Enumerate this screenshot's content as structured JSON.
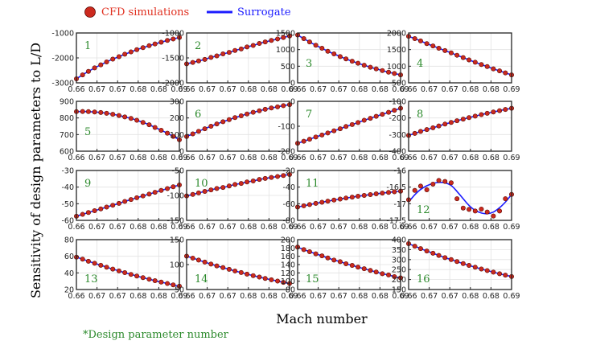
{
  "colors": {
    "cfd_face": "#cc2a1e",
    "cfd_edge": "#5a0a06",
    "surrogate": "#1c1cff",
    "panel_number": "#2c8a2c",
    "legend_cfd_text": "#e03020",
    "legend_surrogate_text": "#1c1cff",
    "footnote_text": "#2c8a2c",
    "grid": "#e2e2e2"
  },
  "legend": {
    "cfd_label": "CFD simulations",
    "surrogate_label": "Surrogate",
    "placement": "top-left"
  },
  "xlabel": "Mach number",
  "ylabel": "Sensitivity of design parameters to L/D",
  "footnote": "*Design parameter number",
  "chart_data": {
    "type": "scatter",
    "layout": {
      "rows": 4,
      "cols": 4
    },
    "grid": true,
    "x": [
      0.66,
      0.6618,
      0.6635,
      0.6653,
      0.6671,
      0.6688,
      0.6706,
      0.6724,
      0.6741,
      0.6759,
      0.6776,
      0.6794,
      0.6812,
      0.6829,
      0.6847,
      0.6865,
      0.6882,
      0.69
    ],
    "x_ticks": [
      "0.66",
      "0.67",
      "0.67",
      "0.68",
      "0.68",
      "0.69"
    ],
    "x_tick_values": [
      0.66,
      0.666,
      0.672,
      0.678,
      0.684,
      0.69
    ],
    "xlim": [
      0.66,
      0.69
    ],
    "panels": [
      {
        "number": "1",
        "ylim": [
          -3000,
          -1000
        ],
        "yticks": [
          "-1000",
          "-2000",
          "-3000"
        ],
        "ytick_values": [
          -1000,
          -2000,
          -3000
        ],
        "label_pos": "top-left",
        "cfd": [
          -2840,
          -2680,
          -2540,
          -2400,
          -2280,
          -2160,
          -2050,
          -1950,
          -1850,
          -1760,
          -1670,
          -1590,
          -1510,
          -1440,
          -1370,
          -1300,
          -1240,
          -1180
        ],
        "surrogate": [
          -2840,
          -2680,
          -2540,
          -2400,
          -2280,
          -2160,
          -2050,
          -1950,
          -1850,
          -1760,
          -1670,
          -1590,
          -1510,
          -1440,
          -1370,
          -1300,
          -1240,
          -1180
        ]
      },
      {
        "number": "2",
        "ylim": [
          -2000,
          -1000
        ],
        "yticks": [
          "-1000",
          "-1500",
          "-2000"
        ],
        "ytick_values": [
          -1000,
          -1500,
          -2000
        ],
        "label_pos": "top-left",
        "cfd": [
          -1620,
          -1590,
          -1560,
          -1530,
          -1490,
          -1460,
          -1420,
          -1390,
          -1350,
          -1320,
          -1280,
          -1250,
          -1210,
          -1180,
          -1150,
          -1120,
          -1090,
          -1060
        ],
        "surrogate": [
          -1620,
          -1590,
          -1560,
          -1530,
          -1490,
          -1460,
          -1420,
          -1390,
          -1350,
          -1320,
          -1280,
          -1250,
          -1210,
          -1180,
          -1150,
          -1120,
          -1090,
          -1060
        ]
      },
      {
        "number": "3",
        "ylim": [
          0,
          1500
        ],
        "yticks": [
          "1500",
          "1000",
          "500",
          "0"
        ],
        "ytick_values": [
          1500,
          1000,
          500,
          0
        ],
        "label_pos": "middle-left",
        "cfd": [
          1440,
          1330,
          1230,
          1130,
          1040,
          950,
          870,
          790,
          720,
          650,
          590,
          530,
          470,
          420,
          370,
          320,
          280,
          240
        ],
        "surrogate": [
          1440,
          1330,
          1230,
          1130,
          1040,
          950,
          870,
          790,
          720,
          650,
          590,
          530,
          470,
          420,
          370,
          320,
          280,
          240
        ]
      },
      {
        "number": "4",
        "ylim": [
          500,
          2000
        ],
        "yticks": [
          "2000",
          "1500",
          "1000",
          "500"
        ],
        "ytick_values": [
          2000,
          1500,
          1000,
          500
        ],
        "label_pos": "middle-left",
        "cfd": [
          1900,
          1830,
          1760,
          1680,
          1610,
          1540,
          1470,
          1400,
          1330,
          1260,
          1190,
          1120,
          1050,
          990,
          920,
          860,
          800,
          740
        ],
        "surrogate": [
          1900,
          1830,
          1760,
          1680,
          1610,
          1540,
          1470,
          1400,
          1330,
          1260,
          1190,
          1120,
          1050,
          990,
          920,
          860,
          800,
          740
        ]
      },
      {
        "number": "5",
        "ylim": [
          600,
          900
        ],
        "yticks": [
          "900",
          "800",
          "700",
          "600"
        ],
        "ytick_values": [
          900,
          800,
          700,
          600
        ],
        "label_pos": "middle-left",
        "cfd": [
          838,
          839,
          838,
          836,
          833,
          828,
          822,
          815,
          806,
          797,
          786,
          773,
          759,
          743,
          726,
          708,
          689,
          669
        ],
        "surrogate": [
          838,
          839,
          838,
          836,
          833,
          828,
          822,
          815,
          806,
          797,
          786,
          773,
          759,
          743,
          726,
          708,
          689,
          669
        ]
      },
      {
        "number": "6",
        "ylim": [
          0,
          300
        ],
        "yticks": [
          "300",
          "200",
          "100",
          "0"
        ],
        "ytick_values": [
          300,
          200,
          100,
          0
        ],
        "label_pos": "top-left",
        "cfd": [
          88,
          104,
          120,
          135,
          150,
          164,
          177,
          190,
          202,
          213,
          224,
          234,
          243,
          252,
          260,
          267,
          274,
          280
        ],
        "surrogate": [
          88,
          104,
          120,
          135,
          150,
          164,
          177,
          190,
          202,
          213,
          224,
          234,
          243,
          252,
          260,
          267,
          274,
          280
        ]
      },
      {
        "number": "7",
        "ylim": [
          -200,
          0
        ],
        "yticks": [
          "0",
          "-100",
          "-200"
        ],
        "ytick_values": [
          0,
          -100,
          -200
        ],
        "label_pos": "top-left",
        "cfd": [
          -168,
          -160,
          -152,
          -143,
          -135,
          -127,
          -118,
          -110,
          -101,
          -93,
          -85,
          -76,
          -68,
          -60,
          -52,
          -44,
          -36,
          -28
        ],
        "surrogate": [
          -168,
          -160,
          -152,
          -143,
          -135,
          -127,
          -118,
          -110,
          -101,
          -93,
          -85,
          -76,
          -68,
          -60,
          -52,
          -44,
          -36,
          -28
        ]
      },
      {
        "number": "8",
        "ylim": [
          -400,
          -100
        ],
        "yticks": [
          "-100",
          "-200",
          "-300",
          "-400"
        ],
        "ytick_values": [
          -100,
          -200,
          -300,
          -400
        ],
        "label_pos": "top-left",
        "cfd": [
          -305,
          -293,
          -281,
          -270,
          -259,
          -248,
          -237,
          -227,
          -217,
          -207,
          -198,
          -189,
          -180,
          -172,
          -164,
          -156,
          -149,
          -142
        ],
        "surrogate": [
          -305,
          -293,
          -281,
          -270,
          -259,
          -248,
          -237,
          -227,
          -217,
          -207,
          -198,
          -189,
          -180,
          -172,
          -164,
          -156,
          -149,
          -142
        ]
      },
      {
        "number": "9",
        "ylim": [
          -60,
          -30
        ],
        "yticks": [
          "-30",
          "-40",
          "-50",
          "-60"
        ],
        "ytick_values": [
          -30,
          -40,
          -50,
          -60
        ],
        "label_pos": "top-left",
        "cfd": [
          -57.5,
          -56.4,
          -55.3,
          -54.2,
          -53.1,
          -52.0,
          -50.9,
          -49.8,
          -48.6,
          -47.5,
          -46.4,
          -45.3,
          -44.2,
          -43.1,
          -42.0,
          -40.9,
          -39.8,
          -38.7
        ],
        "surrogate": [
          -57.5,
          -56.4,
          -55.3,
          -54.2,
          -53.1,
          -52.0,
          -50.9,
          -49.8,
          -48.6,
          -47.5,
          -46.4,
          -45.3,
          -44.2,
          -43.1,
          -42.0,
          -40.9,
          -39.8,
          -38.7
        ]
      },
      {
        "number": "10",
        "ylim": [
          -150,
          -50
        ],
        "yticks": [
          "-50",
          "-100",
          "-150"
        ],
        "ytick_values": [
          -50,
          -100,
          -150
        ],
        "label_pos": "top-left",
        "cfd": [
          -101,
          -98,
          -95,
          -92,
          -89,
          -86,
          -84,
          -81,
          -78,
          -76,
          -73,
          -71,
          -68,
          -66,
          -64,
          -62,
          -60,
          -58
        ],
        "surrogate": [
          -101,
          -98,
          -95,
          -92,
          -89,
          -86,
          -84,
          -81,
          -78,
          -76,
          -73,
          -71,
          -68,
          -66,
          -64,
          -62,
          -60,
          -58
        ]
      },
      {
        "number": "11",
        "ylim": [
          -80,
          -20
        ],
        "yticks": [
          "-20",
          "-40",
          "-60",
          "-80"
        ],
        "ytick_values": [
          -20,
          -40,
          -60,
          -80
        ],
        "label_pos": "top-left",
        "cfd": [
          -64.0,
          -62.5,
          -61.0,
          -59.6,
          -58.2,
          -56.9,
          -55.6,
          -54.4,
          -53.2,
          -52.1,
          -51.0,
          -50.0,
          -49.0,
          -48.1,
          -47.2,
          -46.4,
          -45.6,
          -44.9
        ],
        "surrogate": [
          -64.0,
          -62.5,
          -61.0,
          -59.6,
          -58.2,
          -56.9,
          -55.6,
          -54.4,
          -53.2,
          -52.1,
          -51.0,
          -50.0,
          -49.0,
          -48.1,
          -47.2,
          -46.4,
          -45.6,
          -44.9
        ]
      },
      {
        "number": "12",
        "ylim": [
          -17.5,
          -16
        ],
        "yticks": [
          "-16",
          "-16.5",
          "-17",
          "-17.5"
        ],
        "ytick_values": [
          -16,
          -16.5,
          -17,
          -17.5
        ],
        "label_pos": "bottom-left",
        "cfd": [
          -16.88,
          -16.6,
          -16.47,
          -16.58,
          -16.41,
          -16.3,
          -16.33,
          -16.37,
          -16.85,
          -17.13,
          -17.17,
          -17.22,
          -17.16,
          -17.25,
          -17.37,
          -17.22,
          -16.85,
          -16.72
        ],
        "surrogate": [
          -16.95,
          -16.73,
          -16.57,
          -16.46,
          -16.39,
          -16.36,
          -16.37,
          -16.45,
          -16.63,
          -16.85,
          -17.05,
          -17.2,
          -17.28,
          -17.3,
          -17.25,
          -17.12,
          -16.95,
          -16.72
        ]
      },
      {
        "number": "13",
        "ylim": [
          20,
          80
        ],
        "yticks": [
          "80",
          "60",
          "40",
          "20"
        ],
        "ytick_values": [
          80,
          60,
          40,
          20
        ],
        "label_pos": "bottom-left",
        "cfd": [
          59.0,
          56.5,
          54.0,
          51.6,
          49.2,
          46.9,
          44.6,
          42.4,
          40.3,
          38.2,
          36.2,
          34.3,
          32.4,
          30.6,
          28.9,
          27.2,
          25.6,
          24.0
        ],
        "surrogate": [
          59.0,
          56.5,
          54.0,
          51.6,
          49.2,
          46.9,
          44.6,
          42.4,
          40.3,
          38.2,
          36.2,
          34.3,
          32.4,
          30.6,
          28.9,
          27.2,
          25.6,
          24.0
        ]
      },
      {
        "number": "14",
        "ylim": [
          50,
          150
        ],
        "yticks": [
          "150",
          "100",
          "50"
        ],
        "ytick_values": [
          150,
          100,
          50
        ],
        "label_pos": "bottom-left",
        "cfd": [
          117,
          113,
          109,
          105,
          101,
          97.4,
          93.9,
          90.5,
          87.2,
          84.0,
          80.9,
          77.9,
          75.0,
          72.2,
          69.5,
          66.9,
          64.4,
          62.0
        ],
        "surrogate": [
          117,
          113,
          109,
          105,
          101,
          97.4,
          93.9,
          90.5,
          87.2,
          84.0,
          80.9,
          77.9,
          75.0,
          72.2,
          69.5,
          66.9,
          64.4,
          62.0
        ]
      },
      {
        "number": "15",
        "ylim": [
          80,
          200
        ],
        "yticks": [
          "200",
          "180",
          "160",
          "140",
          "120",
          "100",
          "80"
        ],
        "ytick_values": [
          200,
          180,
          160,
          140,
          120,
          100,
          80
        ],
        "label_pos": "bottom-left",
        "cfd": [
          182,
          176,
          171,
          166,
          161,
          156,
          151,
          147,
          142,
          138,
          134,
          130,
          126,
          122,
          118,
          115,
          111,
          108
        ],
        "surrogate": [
          182,
          176,
          171,
          166,
          161,
          156,
          151,
          147,
          142,
          138,
          134,
          130,
          126,
          122,
          118,
          115,
          111,
          108
        ]
      },
      {
        "number": "16",
        "ylim": [
          150,
          400
        ],
        "yticks": [
          "400",
          "350",
          "300",
          "250",
          "200",
          "150"
        ],
        "ytick_values": [
          400,
          350,
          300,
          250,
          200,
          150
        ],
        "label_pos": "bottom-left",
        "cfd": [
          380,
          367,
          355,
          343,
          332,
          321,
          310,
          300,
          290,
          280,
          271,
          262,
          253,
          245,
          237,
          229,
          222,
          215
        ],
        "surrogate": [
          380,
          367,
          355,
          343,
          332,
          321,
          310,
          300,
          290,
          280,
          271,
          262,
          253,
          245,
          237,
          229,
          222,
          215
        ]
      }
    ]
  }
}
